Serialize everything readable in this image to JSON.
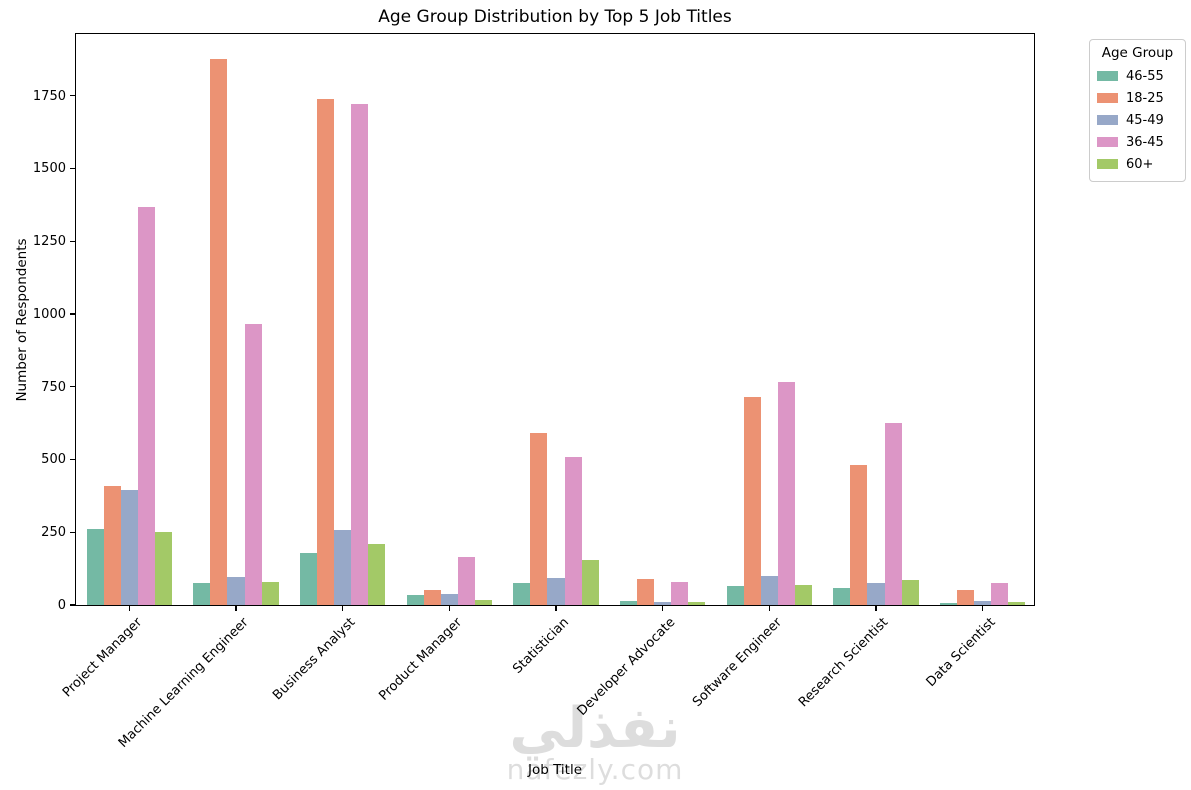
{
  "title": "Age Group Distribution by Top 5 Job Titles",
  "watermark": {
    "arabic": "نفذلي",
    "latin": "nafezly.com"
  },
  "chart_data": {
    "type": "bar",
    "title": "Age Group Distribution by Top 5 Job Titles",
    "xlabel": "Job Title",
    "ylabel": "Number of Respondents",
    "ylim": [
      0,
      1969
    ],
    "yticks": [
      0,
      250,
      500,
      750,
      1000,
      1250,
      1500,
      1750
    ],
    "grid": false,
    "legend_title": "Age Group",
    "legend_position": "upper right outside",
    "xtick_rotation": 45,
    "categories": [
      "Project Manager",
      "Machine Learning Engineer",
      "Business Analyst",
      "Product Manager",
      "Statistician",
      "Developer Advocate",
      "Software Engineer",
      "Research Scientist",
      "Data Scientist"
    ],
    "series": [
      {
        "name": "46-55",
        "color": "#74b9a4",
        "values": [
          262,
          75,
          180,
          34,
          75,
          15,
          64,
          58,
          7
        ]
      },
      {
        "name": "18-25",
        "color": "#ec9273",
        "values": [
          410,
          1875,
          1740,
          53,
          590,
          88,
          715,
          482,
          53
        ]
      },
      {
        "name": "45-49",
        "color": "#97a8c8",
        "values": [
          395,
          95,
          258,
          37,
          94,
          12,
          98,
          76,
          15
        ]
      },
      {
        "name": "36-45",
        "color": "#dc96c6",
        "values": [
          1368,
          965,
          1720,
          165,
          510,
          78,
          765,
          625,
          77
        ]
      },
      {
        "name": "60+",
        "color": "#a3c967",
        "values": [
          252,
          80,
          210,
          18,
          153,
          12,
          70,
          85,
          9
        ]
      }
    ]
  }
}
